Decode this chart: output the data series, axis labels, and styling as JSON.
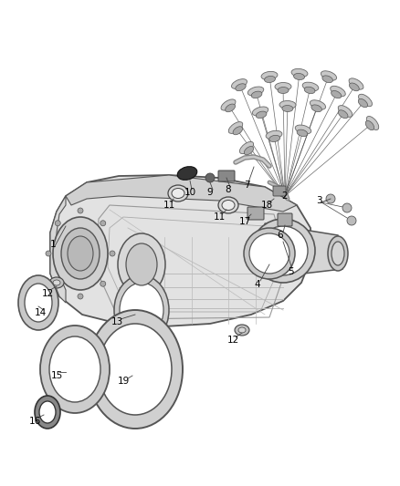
{
  "bg_color": "#ffffff",
  "fig_width": 4.38,
  "fig_height": 5.33,
  "dpi": 100,
  "line_color": "#444444",
  "dark_gray": "#444444",
  "case_fill": "#e8e8e8",
  "case_edge": "#555555",
  "ring_fill": "#d8d8d8",
  "label_fontsize": 7.5
}
